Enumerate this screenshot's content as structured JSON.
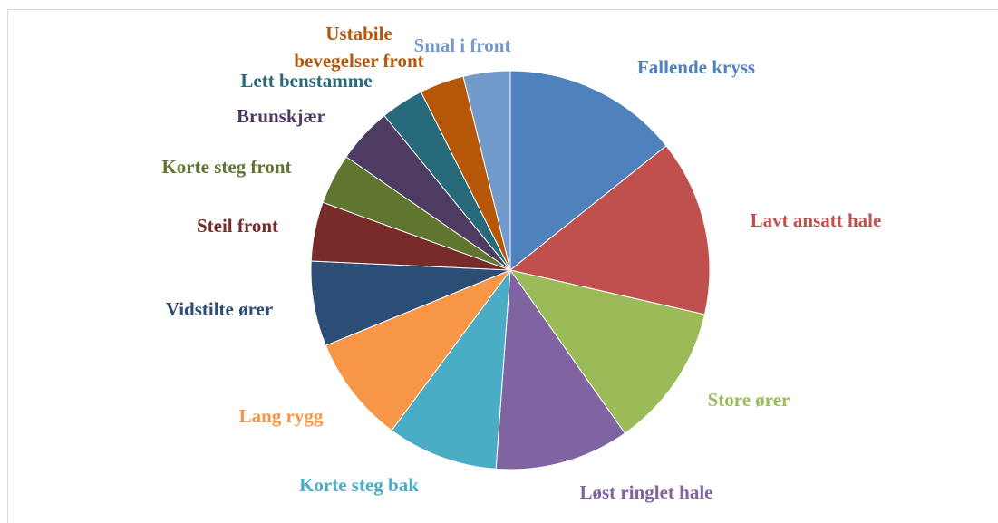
{
  "chart_data": {
    "type": "pie",
    "categories": [
      "Fallende kryss",
      "Lavt ansatt hale",
      "Store ører",
      "Løst ringlet hale",
      "Korte steg bak",
      "Lang rygg",
      "Vidstilte ører",
      "Steil front",
      "Korte steg front",
      "Brunskjær",
      "Lett benstamme",
      "Ustabile bevegelser front",
      "Smal i front"
    ],
    "values": [
      14.3,
      14.3,
      11.7,
      10.9,
      9.0,
      8.7,
      6.9,
      4.8,
      4.1,
      4.5,
      3.5,
      3.6,
      3.8
    ],
    "colors": [
      "#4F81BD",
      "#C0504D",
      "#9BBB59",
      "#8064A2",
      "#4BACC6",
      "#F79646",
      "#2C4D75",
      "#772C2A",
      "#5F7530",
      "#4D3B62",
      "#276A7C",
      "#B65708",
      "#729ACA"
    ]
  }
}
